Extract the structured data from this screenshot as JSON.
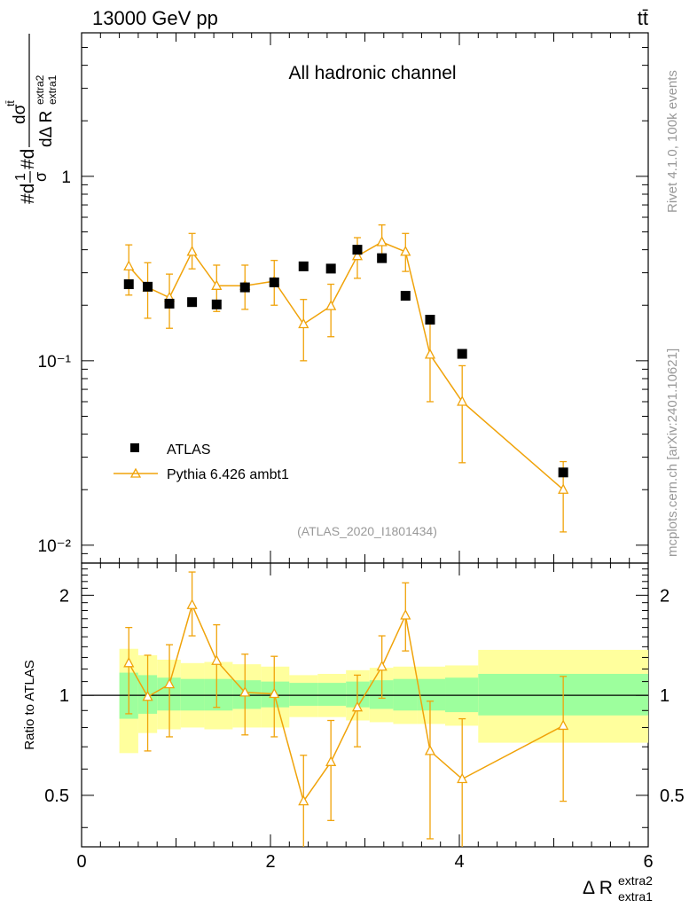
{
  "header": {
    "energy": "13000 GeV pp",
    "process": "tt̄",
    "channel": "All hadronic channel",
    "analysis_id": "(ATLAS_2020_I1801434)",
    "side_rivet": "Rivet 4.1.0,  100k events",
    "side_mcplots": "mcplots.cern.ch [arXiv:2401.10621]"
  },
  "colors": {
    "mc": "#f0a30a",
    "data": "#000000",
    "band_green": "#9dff9d",
    "band_yellow": "#ffff9d"
  },
  "chart_data": [
    {
      "type": "scatter",
      "name": "main",
      "yscale": "log",
      "ylim": [
        0.008,
        6
      ],
      "xlim": [
        0,
        6
      ],
      "ylabel": "#d 1/σ #d dσ^{tt̄}/dΔ R^{extra2}_{extra1}",
      "ytick_labels": [
        "10⁻²",
        "10⁻¹",
        "1"
      ],
      "yticks": [
        0.01,
        0.1,
        1
      ],
      "legend_position": "center-left",
      "series": [
        {
          "name": "ATLAS",
          "x": [
            0.5,
            0.7,
            0.93,
            1.17,
            1.43,
            1.73,
            2.04,
            2.35,
            2.64,
            2.92,
            3.18,
            3.43,
            3.69,
            4.03,
            5.1
          ],
          "y": [
            0.26,
            0.252,
            0.204,
            0.208,
            0.202,
            0.25,
            0.266,
            0.325,
            0.316,
            0.4,
            0.36,
            0.225,
            0.167,
            0.109,
            0.0248
          ]
        },
        {
          "name": "Pythia 6.426 ambt1",
          "x": [
            0.5,
            0.7,
            0.93,
            1.17,
            1.43,
            1.73,
            2.04,
            2.35,
            2.64,
            2.92,
            3.18,
            3.43,
            3.69,
            4.03,
            5.1
          ],
          "y": [
            0.325,
            0.25,
            0.22,
            0.39,
            0.255,
            0.255,
            0.27,
            0.158,
            0.198,
            0.37,
            0.44,
            0.39,
            0.108,
            0.06,
            0.02
          ],
          "err_lo": [
            0.227,
            0.17,
            0.15,
            0.315,
            0.185,
            0.19,
            0.2,
            0.1,
            0.135,
            0.28,
            0.355,
            0.305,
            0.06,
            0.028,
            0.0118
          ],
          "err_hi": [
            0.425,
            0.34,
            0.295,
            0.49,
            0.33,
            0.33,
            0.35,
            0.215,
            0.26,
            0.465,
            0.545,
            0.49,
            0.16,
            0.094,
            0.0284
          ]
        }
      ]
    },
    {
      "type": "scatter",
      "name": "ratio",
      "yscale": "log",
      "ylim": [
        0.35,
        2.5
      ],
      "xlim": [
        0,
        6
      ],
      "xlabel": "Δ R^{extra2}_{extra1}",
      "ylabel": "Ratio to ATLAS",
      "xticks": [
        0,
        2,
        4,
        6
      ],
      "xtick_labels": [
        "0",
        "2",
        "4",
        "6"
      ],
      "yticks": [
        0.5,
        1,
        2
      ],
      "ytick_labels": [
        "0.5",
        "1",
        "2"
      ],
      "bands": {
        "edges": [
          0.4,
          0.6,
          0.8,
          1.05,
          1.3,
          1.6,
          1.9,
          2.2,
          2.5,
          2.8,
          3.05,
          3.3,
          3.55,
          3.85,
          4.2,
          6.0
        ],
        "green_lo": [
          0.85,
          0.88,
          0.9,
          0.9,
          0.9,
          0.91,
          0.92,
          0.93,
          0.93,
          0.92,
          0.91,
          0.9,
          0.9,
          0.89,
          0.87
        ],
        "green_hi": [
          1.17,
          1.15,
          1.13,
          1.12,
          1.12,
          1.11,
          1.1,
          1.09,
          1.09,
          1.1,
          1.11,
          1.12,
          1.12,
          1.13,
          1.16
        ],
        "yellow_lo": [
          0.67,
          0.77,
          0.79,
          0.8,
          0.79,
          0.8,
          0.8,
          0.86,
          0.86,
          0.84,
          0.83,
          0.82,
          0.82,
          0.81,
          0.72
        ],
        "yellow_hi": [
          1.38,
          1.32,
          1.28,
          1.25,
          1.26,
          1.24,
          1.22,
          1.15,
          1.16,
          1.19,
          1.21,
          1.22,
          1.22,
          1.23,
          1.37
        ]
      },
      "series": [
        {
          "name": "Pythia 6.426 ambt1 / ATLAS",
          "x": [
            0.5,
            0.7,
            0.93,
            1.17,
            1.43,
            1.73,
            2.04,
            2.35,
            2.64,
            2.92,
            3.18,
            3.43,
            3.69,
            4.03,
            5.1
          ],
          "y": [
            1.25,
            0.99,
            1.08,
            1.87,
            1.27,
            1.02,
            1.01,
            0.48,
            0.63,
            0.92,
            1.22,
            1.74,
            0.68,
            0.56,
            0.81
          ],
          "err_lo": [
            0.88,
            0.68,
            0.75,
            1.51,
            0.92,
            0.76,
            0.75,
            0.31,
            0.42,
            0.7,
            0.98,
            1.36,
            0.37,
            0.26,
            0.48
          ],
          "err_hi": [
            1.6,
            1.32,
            1.42,
            2.35,
            1.63,
            1.33,
            1.31,
            0.66,
            0.84,
            1.15,
            1.51,
            2.18,
            0.96,
            0.85,
            1.14
          ]
        }
      ]
    }
  ]
}
